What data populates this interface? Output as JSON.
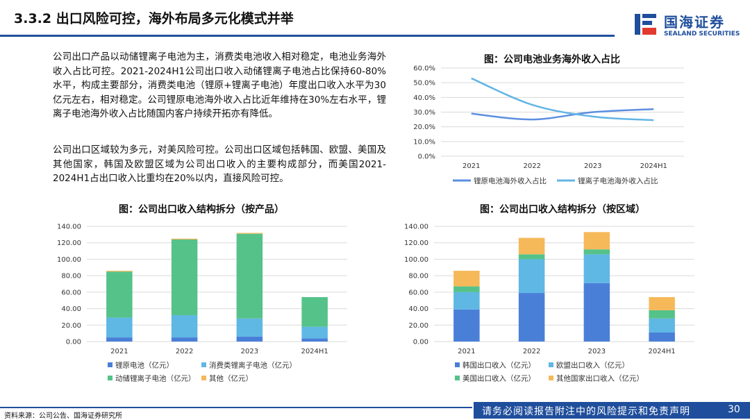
{
  "header": {
    "title": "3.3.2 出口风险可控，海外布局多元化模式并举",
    "logo_cn": "国海证券",
    "logo_en": "SEALAND SECURITIES",
    "brand_color": "#1f4e9c"
  },
  "body": {
    "paragraph1": "公司出口产品以动储锂离子电池为主，消费类电池收入相对稳定，电池业务海外收入占比可控。2021-2024H1公司出口收入动储锂离子电池占比保持60-80%水平，构成主要部分，消费类电池（锂原+锂离子电池）年度出口收入水平为30亿元左右，相对稳定。公司锂原电池海外收入占比近年维持在30%左右水平，锂离子电池海外收入占比随国内客户持续开拓亦有降低。",
    "paragraph2": "公司出口区域较为多元，对美风险可控。公司出口区域包括韩国、欧盟、美国及其他国家，韩国及欧盟区域为公司出口收入的主要构成部分，而美国2021-2024H1占出口收入比重均在20%以内，直接风险可控。"
  },
  "chart_data": [
    {
      "type": "line",
      "title": "图：公司电池业务海外收入占比",
      "categories": [
        "2021",
        "2022",
        "2023",
        "2024H1"
      ],
      "yticks": [
        "0.0%",
        "10.0%",
        "20.0%",
        "30.0%",
        "40.0%",
        "50.0%",
        "60.0%"
      ],
      "ylim": [
        0,
        60
      ],
      "series": [
        {
          "name": "锂原电池海外收入占比",
          "values": [
            29,
            25,
            30,
            32
          ],
          "color": "#5b8ee0"
        },
        {
          "name": "锂离子电池海外收入占比",
          "values": [
            53,
            35,
            27,
            24.5
          ],
          "color": "#62b5e5"
        }
      ],
      "legend": "bottom"
    },
    {
      "type": "bar",
      "stacked": true,
      "title": "图：公司出口收入结构拆分（按产品）",
      "categories": [
        "2021",
        "2022",
        "2023",
        "2024H1"
      ],
      "yticks": [
        "0.00",
        "20.00",
        "40.00",
        "60.00",
        "80.00",
        "100.00",
        "120.00",
        "140.00"
      ],
      "ylim": [
        0,
        140
      ],
      "series": [
        {
          "name": "锂原电池（亿元）",
          "values": [
            5,
            5,
            6,
            4
          ],
          "color": "#4a7fd8"
        },
        {
          "name": "消费类锂离子电池（亿元）",
          "values": [
            24,
            27,
            22,
            14
          ],
          "color": "#5fb7e4"
        },
        {
          "name": "动储锂离子电池（亿元）",
          "values": [
            56,
            92,
            103,
            36
          ],
          "color": "#55c28a"
        },
        {
          "name": "其他（亿元）",
          "values": [
            1,
            1,
            1,
            0
          ],
          "color": "#f5b95a"
        }
      ],
      "legend": "bottom"
    },
    {
      "type": "bar",
      "stacked": true,
      "title": "图：公司出口收入结构拆分（按区域）",
      "categories": [
        "2021",
        "2022",
        "2023",
        "2024H1"
      ],
      "yticks": [
        "0.00",
        "20.00",
        "40.00",
        "60.00",
        "80.00",
        "100.00",
        "120.00",
        "140.00"
      ],
      "ylim": [
        0,
        140
      ],
      "series": [
        {
          "name": "韩国出口收入（亿元）",
          "values": [
            39,
            59,
            71,
            11
          ],
          "color": "#4a7fd8"
        },
        {
          "name": "欧盟出口收入（亿元）",
          "values": [
            21,
            41,
            35,
            17
          ],
          "color": "#5fb7e4"
        },
        {
          "name": "美国出口收入（亿元）",
          "values": [
            7,
            6,
            6,
            10
          ],
          "color": "#55c28a"
        },
        {
          "name": "其他国家出口收入（亿元）",
          "values": [
            19,
            20,
            21,
            16
          ],
          "color": "#f5b95a"
        }
      ],
      "legend": "bottom"
    }
  ],
  "footer": {
    "source": "资料来源：公司公告、国海证券研究所",
    "notice": "请务必阅读报告附注中的风险提示和免责声明",
    "page": "30"
  }
}
